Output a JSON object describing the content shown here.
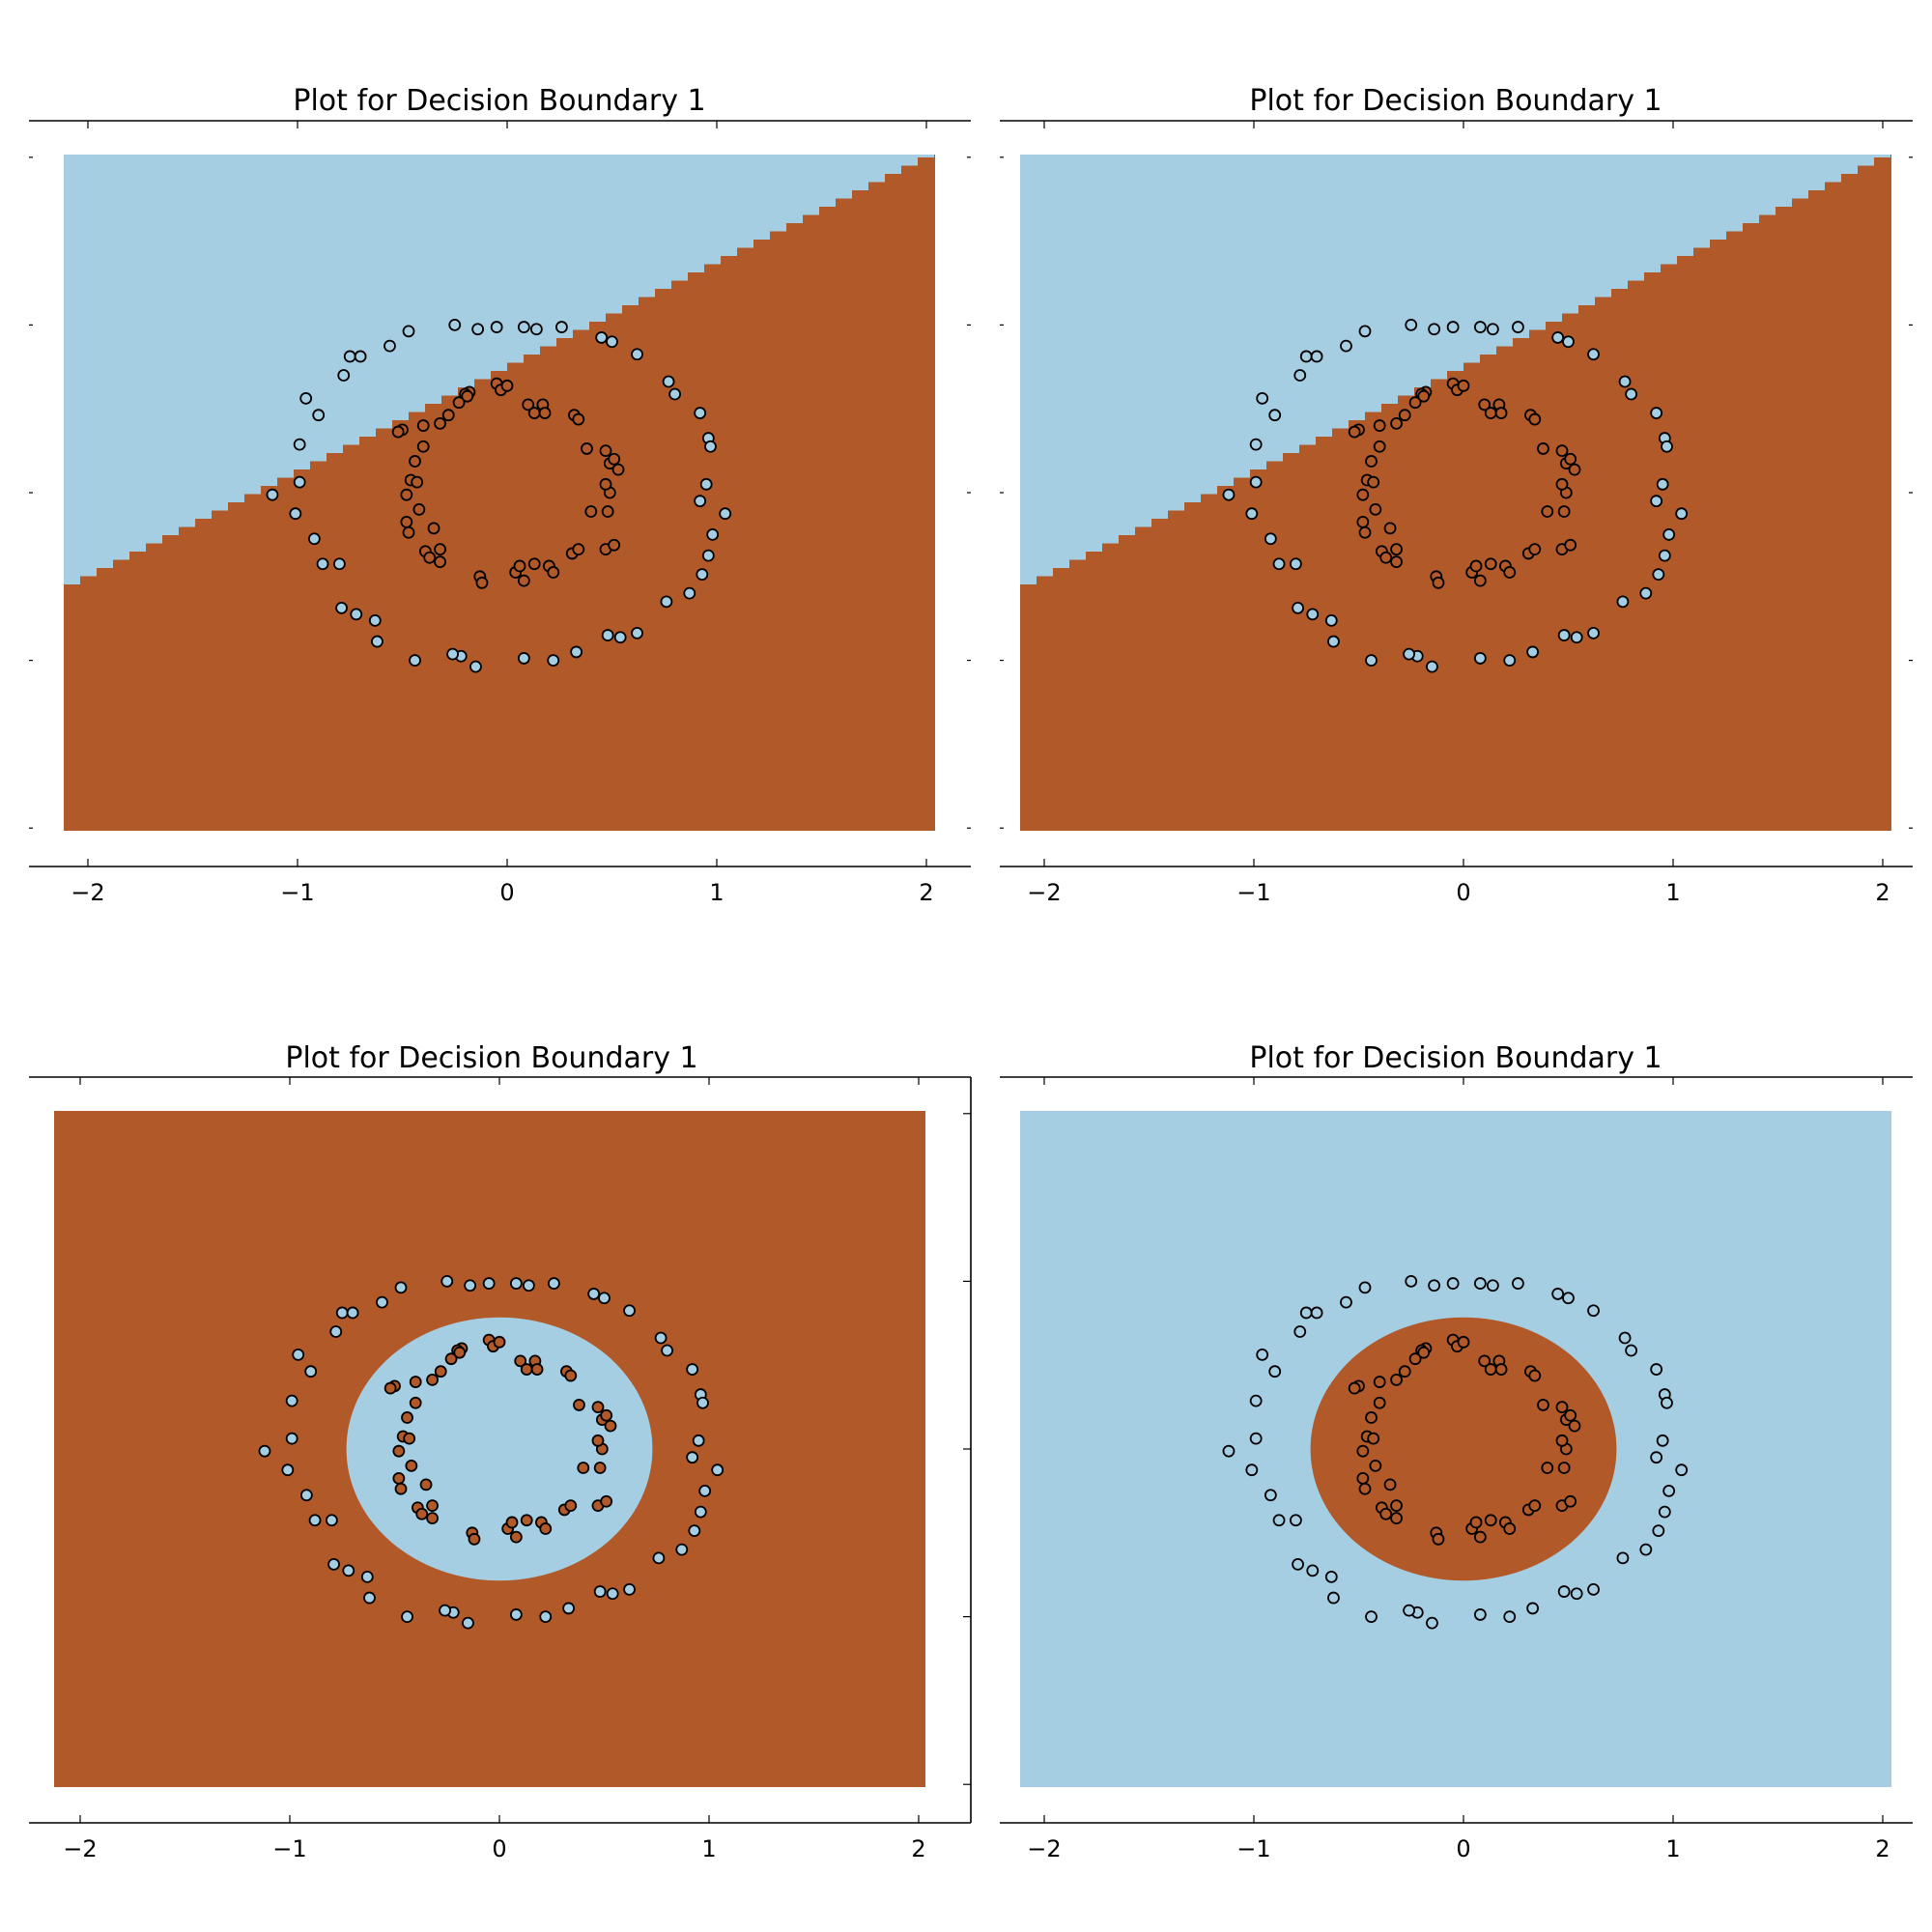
{
  "colors": {
    "class0": "#a6cee3",
    "class1": "#b15928"
  },
  "chart_data": [
    {
      "type": "scatter",
      "title": "Plot for Decision Boundary 1",
      "xlabel": "",
      "ylabel": "",
      "xlim": [
        -2.25,
        2.25
      ],
      "ylim": [
        -2.25,
        2.25
      ],
      "x_ticks": [
        "−2",
        "−1",
        "0",
        "1",
        "2"
      ],
      "y_tick_labels_shown": false,
      "grid": false,
      "background_region": {
        "kind": "linear",
        "slope": 0.5,
        "intercept": 0.6,
        "above_class": 0,
        "below_class": 1
      },
      "outer_ring": {
        "class": 0,
        "radius": 1.05
      },
      "inner_ring": {
        "class": 1,
        "radius": 0.58
      }
    },
    {
      "type": "scatter",
      "title": "Plot for Decision Boundary 1",
      "xlabel": "",
      "ylabel": "",
      "xlim": [
        -2.25,
        2.25
      ],
      "ylim": [
        -2.25,
        2.25
      ],
      "x_ticks": [
        "−2",
        "−1",
        "0",
        "1",
        "2"
      ],
      "y_tick_labels_shown": false,
      "grid": false,
      "background_region": {
        "kind": "linear",
        "slope": 0.5,
        "intercept": 0.6,
        "above_class": 0,
        "below_class": 1
      },
      "outer_ring": {
        "class": 0,
        "radius": 1.05
      },
      "inner_ring": {
        "class": 1,
        "radius": 0.58
      }
    },
    {
      "type": "scatter",
      "title": "Plot for Decision Boundary 1",
      "xlabel": "",
      "ylabel": "",
      "xlim": [
        -2.25,
        2.25
      ],
      "ylim": [
        -2.25,
        2.25
      ],
      "x_ticks": [
        "−2",
        "−1",
        "0",
        "1",
        "2"
      ],
      "y_tick_labels_shown": false,
      "grid": false,
      "background_region": {
        "kind": "ellipse",
        "rx": 0.73,
        "ry": 0.73,
        "inside_class": 0,
        "outside_class": 1
      },
      "outer_ring": {
        "class": 0,
        "radius": 1.05
      },
      "inner_ring": {
        "class": 1,
        "radius": 0.58
      }
    },
    {
      "type": "scatter",
      "title": "Plot for Decision Boundary 1",
      "xlabel": "",
      "ylabel": "",
      "xlim": [
        -2.25,
        2.25
      ],
      "ylim": [
        -2.25,
        2.25
      ],
      "x_ticks": [
        "−2",
        "−1",
        "0",
        "1",
        "2"
      ],
      "y_tick_labels_shown": false,
      "grid": false,
      "background_region": {
        "kind": "ellipse",
        "rx": 0.73,
        "ry": 0.73,
        "inside_class": 1,
        "outside_class": 0
      },
      "outer_ring": {
        "class": 0,
        "radius": 1.05
      },
      "inner_ring": {
        "class": 1,
        "radius": 0.58
      }
    }
  ],
  "points": {
    "outer": [
      [
        -0.25,
        0.8
      ],
      [
        -0.14,
        0.78
      ],
      [
        -0.05,
        0.79
      ],
      [
        0.08,
        0.79
      ],
      [
        0.14,
        0.78
      ],
      [
        0.26,
        0.79
      ],
      [
        0.45,
        0.74
      ],
      [
        0.5,
        0.72
      ],
      [
        0.62,
        0.66
      ],
      [
        0.77,
        0.53
      ],
      [
        0.8,
        0.47
      ],
      [
        0.92,
        0.38
      ],
      [
        0.96,
        0.26
      ],
      [
        0.97,
        0.22
      ],
      [
        0.95,
        0.04
      ],
      [
        0.92,
        -0.04
      ],
      [
        1.04,
        -0.1
      ],
      [
        0.98,
        -0.2
      ],
      [
        0.96,
        -0.3
      ],
      [
        0.93,
        -0.39
      ],
      [
        0.87,
        -0.48
      ],
      [
        0.76,
        -0.52
      ],
      [
        0.62,
        -0.67
      ],
      [
        0.54,
        -0.69
      ],
      [
        0.48,
        -0.68
      ],
      [
        0.33,
        -0.76
      ],
      [
        0.22,
        -0.8
      ],
      [
        0.08,
        -0.79
      ],
      [
        -0.15,
        -0.83
      ],
      [
        -0.22,
        -0.78
      ],
      [
        -0.26,
        -0.77
      ],
      [
        -0.44,
        -0.8
      ],
      [
        -0.62,
        -0.71
      ],
      [
        -0.63,
        -0.61
      ],
      [
        -0.72,
        -0.58
      ],
      [
        -0.79,
        -0.55
      ],
      [
        -0.8,
        -0.34
      ],
      [
        -0.88,
        -0.34
      ],
      [
        -0.92,
        -0.22
      ],
      [
        -1.01,
        -0.1
      ],
      [
        -1.12,
        -0.01
      ],
      [
        -0.99,
        0.05
      ],
      [
        -0.99,
        0.23
      ],
      [
        -0.96,
        0.45
      ],
      [
        -0.9,
        0.37
      ],
      [
        -0.78,
        0.56
      ],
      [
        -0.75,
        0.65
      ],
      [
        -0.7,
        0.65
      ],
      [
        -0.56,
        0.7
      ],
      [
        -0.47,
        0.77
      ]
    ],
    "inner": [
      [
        -0.05,
        0.52
      ],
      [
        -0.03,
        0.49
      ],
      [
        -0.18,
        0.48
      ],
      [
        -0.2,
        0.47
      ],
      [
        -0.23,
        0.43
      ],
      [
        -0.19,
        0.46
      ],
      [
        -0.28,
        0.37
      ],
      [
        -0.32,
        0.33
      ],
      [
        -0.4,
        0.32
      ],
      [
        -0.5,
        0.3
      ],
      [
        -0.52,
        0.29
      ],
      [
        -0.4,
        0.22
      ],
      [
        -0.44,
        0.15
      ],
      [
        -0.46,
        0.06
      ],
      [
        -0.43,
        0.05
      ],
      [
        -0.48,
        -0.01
      ],
      [
        -0.42,
        -0.08
      ],
      [
        -0.48,
        -0.14
      ],
      [
        -0.47,
        -0.19
      ],
      [
        -0.35,
        -0.17
      ],
      [
        -0.32,
        -0.27
      ],
      [
        -0.39,
        -0.28
      ],
      [
        -0.37,
        -0.31
      ],
      [
        -0.32,
        -0.33
      ],
      [
        -0.13,
        -0.4
      ],
      [
        -0.12,
        -0.43
      ],
      [
        0.04,
        -0.38
      ],
      [
        0.08,
        -0.42
      ],
      [
        0.06,
        -0.35
      ],
      [
        0.13,
        -0.34
      ],
      [
        0.2,
        -0.35
      ],
      [
        0.22,
        -0.38
      ],
      [
        0.31,
        -0.29
      ],
      [
        0.34,
        -0.27
      ],
      [
        0.47,
        -0.27
      ],
      [
        0.51,
        -0.25
      ],
      [
        0.4,
        -0.09
      ],
      [
        0.48,
        -0.09
      ],
      [
        0.49,
        0.0
      ],
      [
        0.47,
        0.04
      ],
      [
        0.49,
        0.14
      ],
      [
        0.53,
        0.11
      ],
      [
        0.51,
        0.16
      ],
      [
        0.47,
        0.2
      ],
      [
        0.38,
        0.21
      ],
      [
        0.32,
        0.37
      ],
      [
        0.34,
        0.35
      ],
      [
        0.17,
        0.42
      ],
      [
        0.1,
        0.42
      ],
      [
        0.13,
        0.38
      ],
      [
        0.18,
        0.38
      ],
      [
        0.0,
        0.51
      ]
    ]
  }
}
